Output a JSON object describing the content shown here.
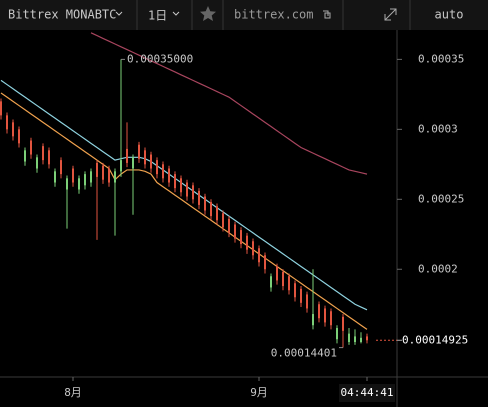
{
  "toolbar": {
    "symbol": "Bittrex MONABTC",
    "interval": "1日",
    "source": "bittrex.com",
    "scale": "auto"
  },
  "chart_data": {
    "type": "candlestick",
    "categories": [
      null,
      null,
      null,
      null,
      null,
      null,
      null,
      null,
      null,
      null,
      null,
      null,
      "8月",
      null,
      null,
      null,
      null,
      null,
      null,
      null,
      null,
      null,
      null,
      null,
      null,
      null,
      null,
      null,
      null,
      null,
      null,
      null,
      null,
      null,
      null,
      null,
      null,
      null,
      null,
      null,
      null,
      null,
      null,
      "9月",
      null,
      null,
      null,
      null,
      null,
      null,
      null,
      null,
      null,
      null,
      null,
      null,
      null,
      null,
      null,
      null,
      null,
      "04:44:41"
    ],
    "ohlc": {
      "up_color": "#7ccf78",
      "down_color": "#e2553f",
      "open": [
        0.00032,
        0.00031,
        0.000305,
        0.0003,
        0.000277,
        0.000292,
        0.000272,
        0.000288,
        0.000285,
        0.000262,
        0.000278,
        0.000257,
        0.000272,
        0.000257,
        0.00026,
        0.000262,
        0.000276,
        0.000274,
        0.000272,
        0.000262,
        0.00027,
        0.000286,
        0.000272,
        0.000289,
        0.000285,
        0.000282,
        0.000278,
        0.000275,
        0.000272,
        0.000268,
        0.000265,
        0.000262,
        0.00026,
        0.000256,
        0.000252,
        0.000248,
        0.000245,
        0.00024,
        0.000236,
        0.000232,
        0.000228,
        0.000224,
        0.00022,
        0.000215,
        0.00021,
        0.000187,
        0.000202,
        0.000198,
        0.000195,
        0.00019,
        0.000186,
        0.000182,
        0.00016,
        0.000175,
        0.000172,
        0.00017,
        0.00015,
        0.000166,
        0.000148,
        0.000148,
        0.000148,
        0.000152
      ],
      "high": [
        0.000322,
        0.000312,
        0.000307,
        0.000302,
        0.000287,
        0.000294,
        0.000282,
        0.00029,
        0.000287,
        0.000272,
        0.00028,
        0.000267,
        0.000274,
        0.000267,
        0.00027,
        0.000272,
        0.000278,
        0.000276,
        0.000274,
        0.000272,
        0.00035,
        0.000305,
        0.000282,
        0.000291,
        0.000287,
        0.000284,
        0.00028,
        0.000277,
        0.000274,
        0.00027,
        0.000267,
        0.000264,
        0.000262,
        0.000258,
        0.000254,
        0.00025,
        0.000247,
        0.000242,
        0.000238,
        0.000234,
        0.00023,
        0.000226,
        0.000222,
        0.000217,
        0.000212,
        0.000197,
        0.000204,
        0.0002,
        0.000197,
        0.000192,
        0.000188,
        0.000184,
        0.0002,
        0.000177,
        0.000174,
        0.000172,
        0.00016,
        0.000168,
        0.000158,
        0.000157,
        0.000155,
        0.000154
      ],
      "low": [
        0.000307,
        0.000297,
        0.000292,
        0.000287,
        0.000274,
        0.000279,
        0.000269,
        0.000275,
        0.000272,
        0.000259,
        0.000265,
        0.000229,
        0.000259,
        0.000254,
        0.000257,
        0.000259,
        0.000221,
        0.000261,
        0.000259,
        0.000224,
        0.000266,
        0.000273,
        0.000239,
        0.000276,
        0.000272,
        0.000269,
        0.000265,
        0.000262,
        0.000259,
        0.000255,
        0.000252,
        0.000249,
        0.000247,
        0.000243,
        0.000239,
        0.000235,
        0.000232,
        0.000227,
        0.000223,
        0.000219,
        0.000215,
        0.000211,
        0.000207,
        0.000202,
        0.000197,
        0.000184,
        0.000189,
        0.000185,
        0.000182,
        0.000177,
        0.000173,
        0.000169,
        0.000157,
        0.000162,
        0.000159,
        0.000157,
        0.000147,
        0.00014401,
        0.000146,
        0.000146,
        0.000147,
        0.000147
      ],
      "close": [
        0.00031,
        0.0003,
        0.000295,
        0.00029,
        0.000285,
        0.000282,
        0.00028,
        0.000278,
        0.000275,
        0.00027,
        0.000268,
        0.000265,
        0.000262,
        0.000265,
        0.000268,
        0.00027,
        0.000266,
        0.000264,
        0.000262,
        0.00027,
        0.000278,
        0.000276,
        0.00028,
        0.000279,
        0.000275,
        0.000272,
        0.000268,
        0.000265,
        0.000262,
        0.000258,
        0.000255,
        0.000252,
        0.00025,
        0.000246,
        0.000242,
        0.000238,
        0.000235,
        0.00023,
        0.000226,
        0.000222,
        0.000218,
        0.000214,
        0.00021,
        0.000205,
        0.0002,
        0.000195,
        0.000192,
        0.000188,
        0.000185,
        0.00018,
        0.000176,
        0.000172,
        0.000168,
        0.000165,
        0.000162,
        0.00016,
        0.000158,
        0.000156,
        0.000154,
        0.000152,
        0.000151,
        0.00014925
      ]
    },
    "lines": [
      {
        "color": "#8fd3e0",
        "values": [
          0.000335,
          0.000332,
          0.000329,
          0.000326,
          0.000323,
          0.00032,
          0.000317,
          0.000314,
          0.000311,
          0.000308,
          0.000305,
          0.000302,
          0.000299,
          0.000296,
          0.000293,
          0.00029,
          0.000287,
          0.000284,
          0.000281,
          0.000278,
          0.000279,
          0.00028,
          0.00028,
          0.00028,
          0.000279,
          0.000277,
          0.000274,
          0.000271,
          0.000268,
          0.000265,
          0.000262,
          0.000259,
          0.000256,
          0.000253,
          0.00025,
          0.000247,
          0.000244,
          0.000241,
          0.000238,
          0.000235,
          0.000232,
          0.000229,
          0.000226,
          0.000223,
          0.00022,
          0.000217,
          0.000214,
          0.000211,
          0.000208,
          0.000205,
          0.000202,
          0.000199,
          0.000196,
          0.000193,
          0.00019,
          0.000187,
          0.000184,
          0.000181,
          0.000178,
          0.000175,
          0.000173,
          0.000171
        ]
      },
      {
        "color": "#f0a24e",
        "values": [
          0.000326,
          0.000323,
          0.00032,
          0.000317,
          0.000314,
          0.000311,
          0.000308,
          0.000305,
          0.000302,
          0.000299,
          0.000296,
          0.000293,
          0.00029,
          0.000287,
          0.000284,
          0.000281,
          0.000278,
          0.000275,
          0.000272,
          0.000264,
          0.000268,
          0.000271,
          0.000271,
          0.000271,
          0.00027,
          0.000268,
          0.000262,
          0.000259,
          0.000256,
          0.000253,
          0.00025,
          0.000247,
          0.000244,
          0.000241,
          0.000238,
          0.000235,
          0.000232,
          0.000229,
          0.000226,
          0.000223,
          0.00022,
          0.000217,
          0.000214,
          0.000211,
          0.000208,
          0.000205,
          0.000202,
          0.000199,
          0.000196,
          0.000193,
          0.00019,
          0.000187,
          0.000184,
          0.000181,
          0.000178,
          0.000175,
          0.000172,
          0.000169,
          0.000166,
          0.000163,
          0.00016,
          0.000157
        ]
      },
      {
        "color": "#a8455e",
        "values": [
          null,
          null,
          null,
          null,
          null,
          null,
          null,
          null,
          null,
          null,
          null,
          null,
          null,
          null,
          null,
          0.000369,
          0.000367,
          0.000365,
          0.000363,
          0.000361,
          0.000359,
          0.000357,
          0.000355,
          0.000353,
          0.000351,
          0.000349,
          0.000347,
          0.000345,
          0.000343,
          0.000341,
          0.000339,
          0.000337,
          0.000335,
          0.000333,
          0.000331,
          0.000329,
          0.000327,
          0.000325,
          0.000323,
          0.00032,
          0.000317,
          0.000314,
          0.000311,
          0.000308,
          0.000305,
          0.000302,
          0.000299,
          0.000296,
          0.000293,
          0.00029,
          0.000287,
          0.000285,
          0.000283,
          0.000281,
          0.000279,
          0.000277,
          0.000275,
          0.000273,
          0.000271,
          0.00027,
          0.000269,
          0.000268
        ]
      }
    ],
    "annotations": [
      {
        "index": 20,
        "value": 0.00035,
        "label": "0.00035000"
      },
      {
        "index": 57,
        "value": 0.00014401,
        "label": "0.00014401"
      }
    ],
    "last_price": 0.00014925,
    "ylim": [
      0.000123,
      0.000371
    ],
    "yticks": [
      0.00035,
      0.0003,
      0.00025,
      0.0002
    ]
  }
}
